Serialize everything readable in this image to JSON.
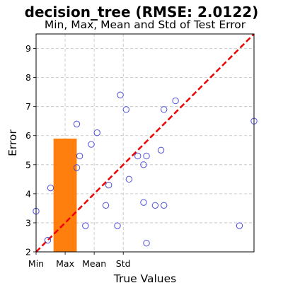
{
  "chart_data": {
    "type": "scatter",
    "title": "decision_tree (RMSE: 2.0122)",
    "subtitle": "Min, Max, Mean and Std of Test Error",
    "xlabel": "True Values",
    "ylabel": "Error",
    "xlim": [
      2.0,
      9.5
    ],
    "ylim": [
      2.0,
      9.5
    ],
    "x_tick_values": [
      2.0,
      3.0,
      4.0,
      5.0
    ],
    "x_tick_labels": [
      "Min",
      "Max",
      "Mean",
      "Std"
    ],
    "y_ticks": [
      2,
      3,
      4,
      5,
      6,
      7,
      8,
      9
    ],
    "grid": true,
    "points": [
      {
        "x": 2.0,
        "y": 3.4
      },
      {
        "x": 2.4,
        "y": 2.4
      },
      {
        "x": 2.5,
        "y": 4.2
      },
      {
        "x": 3.4,
        "y": 6.4
      },
      {
        "x": 3.4,
        "y": 4.9
      },
      {
        "x": 3.5,
        "y": 5.3
      },
      {
        "x": 3.7,
        "y": 2.9
      },
      {
        "x": 3.9,
        "y": 5.7
      },
      {
        "x": 4.1,
        "y": 6.1
      },
      {
        "x": 4.4,
        "y": 3.6
      },
      {
        "x": 4.5,
        "y": 4.3
      },
      {
        "x": 4.8,
        "y": 2.9
      },
      {
        "x": 4.9,
        "y": 7.4
      },
      {
        "x": 5.1,
        "y": 6.9
      },
      {
        "x": 5.2,
        "y": 4.5
      },
      {
        "x": 5.5,
        "y": 5.3
      },
      {
        "x": 5.7,
        "y": 5.0
      },
      {
        "x": 5.7,
        "y": 3.7
      },
      {
        "x": 5.8,
        "y": 5.3
      },
      {
        "x": 5.8,
        "y": 2.3
      },
      {
        "x": 6.1,
        "y": 3.6
      },
      {
        "x": 6.3,
        "y": 5.5
      },
      {
        "x": 6.4,
        "y": 3.6
      },
      {
        "x": 6.4,
        "y": 6.9
      },
      {
        "x": 6.8,
        "y": 7.2
      },
      {
        "x": 9.0,
        "y": 2.9
      },
      {
        "x": 9.5,
        "y": 6.5
      }
    ],
    "bar": {
      "x_start": 2.6,
      "x_end": 3.4,
      "value": 5.9,
      "color": "#ff7f0e"
    },
    "reference_line": {
      "from": [
        2.0,
        2.0
      ],
      "to": [
        9.5,
        9.5
      ],
      "color": "#ff0000",
      "style": "dashed"
    },
    "marker_color": "#3b3bdc"
  }
}
